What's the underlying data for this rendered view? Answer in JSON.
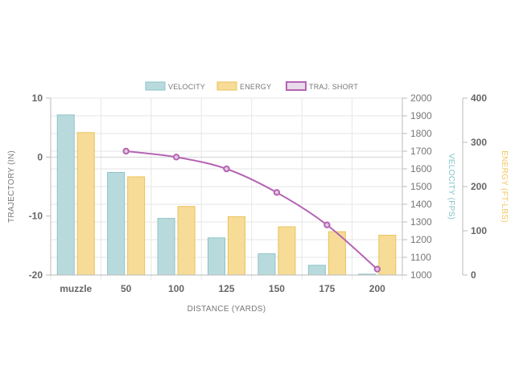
{
  "chart_data": {
    "type": "bar",
    "categories": [
      "muzzle",
      "50",
      "100",
      "125",
      "150",
      "175",
      "200"
    ],
    "xlabel": "DISTANCE (YARDS)",
    "series": [
      {
        "name": "VELOCITY",
        "type": "bar",
        "axis": "velocity",
        "values": [
          1905,
          1580,
          1320,
          1210,
          1120,
          1055,
          1005
        ],
        "color": "#b9dadd",
        "border": "#8cc3c8"
      },
      {
        "name": "ENERGY",
        "type": "bar",
        "axis": "energy",
        "values": [
          322,
          222,
          155,
          132,
          109,
          98,
          90
        ],
        "color": "#f6dc97",
        "border": "#ebc25a"
      },
      {
        "name": "TRAJ. SHORT",
        "type": "line",
        "axis": "trajectory",
        "values": [
          null,
          1,
          0,
          -2,
          -6,
          -11.5,
          -19
        ],
        "color": "#b565b3"
      }
    ],
    "axes": {
      "trajectory": {
        "label": "TRAJECTORY (IN)",
        "position": "left",
        "min": -20,
        "max": 10,
        "ticks": [
          "10",
          "0",
          "-10",
          "-20"
        ],
        "color": "#777777"
      },
      "velocity": {
        "label": "VELOCITY (FPS)",
        "position": "right",
        "min": 1000,
        "max": 2000,
        "ticks": [
          "2000",
          "1900",
          "1800",
          "1700",
          "1600",
          "1500",
          "1400",
          "1300",
          "1200",
          "1100",
          "1000"
        ],
        "color": "#7fc2c8"
      },
      "energy": {
        "label": "ENERGY (FT-LBS)",
        "position": "right",
        "min": 0,
        "max": 400,
        "ticks": [
          "400",
          "300",
          "200",
          "100",
          "0"
        ],
        "color": "#f2c65a"
      }
    },
    "legend_position": "top",
    "grid": true
  }
}
